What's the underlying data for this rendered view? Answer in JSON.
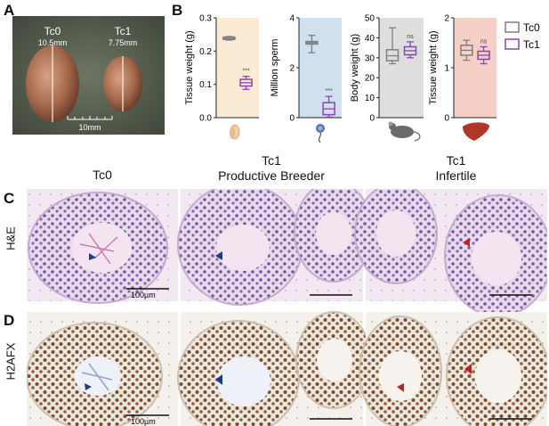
{
  "panel_letters": {
    "a": "A",
    "b": "B",
    "c": "C",
    "d": "D"
  },
  "panel_a": {
    "label_left": "Tc0",
    "size_left": "10.5mm",
    "label_right": "Tc1",
    "size_right": "7.75mm",
    "scale_label": "10mm"
  },
  "legend": {
    "tc0": "Tc0",
    "tc1": "Tc1"
  },
  "column_headers": {
    "col1": "Tc0",
    "col2_line1": "Tc1",
    "col2_line2": "Productive Breeder",
    "col3_line1": "Tc1",
    "col3_line2": "Infertile"
  },
  "row_labels": {
    "c": "H&E",
    "d": "H2AFX"
  },
  "scale_bars": {
    "c_tc0": "100µm",
    "d_tc0": "100µm"
  },
  "colors": {
    "tc0": "#7f7f7f",
    "tc1": "#8e44ad",
    "testis_bg": "#fbebd4",
    "sperm_bg": "#cfe0ef",
    "body_bg": "#dedede",
    "liver_bg": "#f6cfc6"
  },
  "chart_data": [
    {
      "type": "boxplot",
      "ylabel": "Tissue weight (g)",
      "ylim": [
        0,
        0.3
      ],
      "yticks": [
        "0.0",
        "0.1",
        "0.2",
        "0.3"
      ],
      "series": [
        {
          "name": "Tc0",
          "min": 0.233,
          "q1": 0.235,
          "median": 0.238,
          "q3": 0.242,
          "max": 0.244
        },
        {
          "name": "Tc1",
          "min": 0.085,
          "q1": 0.095,
          "median": 0.105,
          "q3": 0.115,
          "max": 0.124
        }
      ],
      "significance": "***"
    },
    {
      "type": "boxplot",
      "ylabel": "Million sperm",
      "ylim": [
        0,
        4
      ],
      "yticks": [
        "0",
        "2",
        "4"
      ],
      "series": [
        {
          "name": "Tc0",
          "min": 2.6,
          "q1": 2.95,
          "median": 3.0,
          "q3": 3.05,
          "max": 3.3
        },
        {
          "name": "Tc1",
          "min": 0.02,
          "q1": 0.12,
          "median": 0.35,
          "q3": 0.6,
          "max": 0.85
        }
      ],
      "significance": "***"
    },
    {
      "type": "boxplot",
      "ylabel": "Body weight (g)",
      "ylim": [
        0,
        50
      ],
      "yticks": [
        "0",
        "10",
        "20",
        "30",
        "40",
        "50"
      ],
      "series": [
        {
          "name": "Tc0",
          "min": 27,
          "q1": 28.5,
          "median": 31,
          "q3": 34,
          "max": 45
        },
        {
          "name": "Tc1",
          "min": 30,
          "q1": 31.5,
          "median": 33.5,
          "q3": 35.5,
          "max": 38
        }
      ],
      "significance": "ns"
    },
    {
      "type": "boxplot",
      "ylabel": "Tissue weight (g)",
      "ylim": [
        0,
        2
      ],
      "yticks": [
        "0",
        "1",
        "2"
      ],
      "series": [
        {
          "name": "Tc0",
          "min": 1.15,
          "q1": 1.25,
          "median": 1.35,
          "q3": 1.45,
          "max": 1.55
        },
        {
          "name": "Tc1",
          "min": 1.08,
          "q1": 1.17,
          "median": 1.25,
          "q3": 1.33,
          "max": 1.42
        }
      ],
      "significance": "ns"
    }
  ]
}
